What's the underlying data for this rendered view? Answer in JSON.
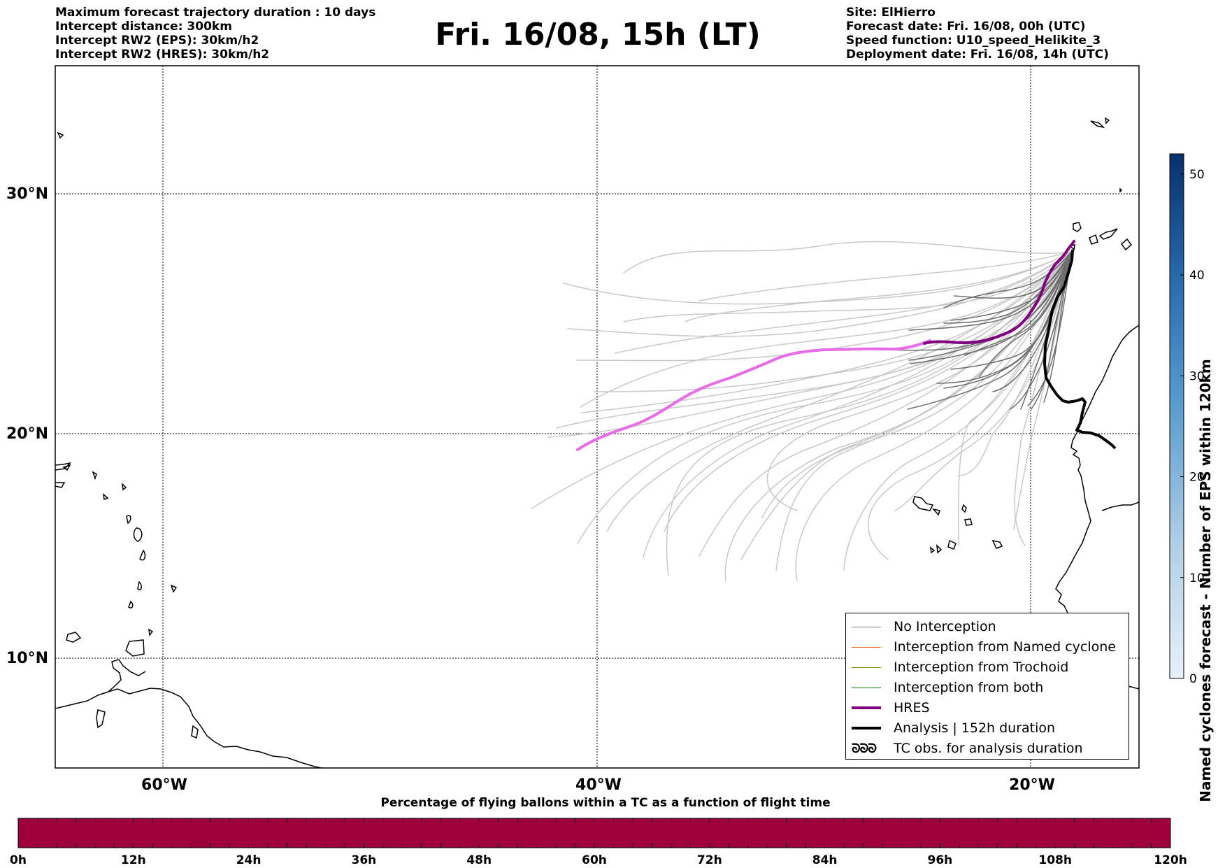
{
  "header": {
    "left": [
      "Maximum forecast trajectory duration : 10 days",
      "Intercept distance: 300km",
      "Intercept RW2 (EPS):  30km/h2",
      "Intercept RW2 (HRES): 30km/h2"
    ],
    "title": "Fri. 16/08, 15h (LT)",
    "right": [
      "Site: ElHierro",
      "Forecast date: Fri. 16/08, 00h (UTC)",
      "Speed function: U10_speed_Helikite_3",
      "Deployment date: Fri. 16/08, 14h (UTC)"
    ]
  },
  "map": {
    "lat_labels": [
      "30°N",
      "20°N",
      "10°N"
    ],
    "lon_labels": [
      "60°W",
      "40°W",
      "20°W"
    ],
    "extent": {
      "lon": [
        -65,
        -15
      ],
      "lat": [
        4.6,
        33.9
      ]
    },
    "gridlines": true,
    "colors": {
      "coast": "#000000",
      "eps_no_interception_dark": "#6e6e6e",
      "eps_no_interception_light": "#c8c8c8",
      "hres_early": "#800080",
      "hres_late": "#e86ce8",
      "analysis": "#000000"
    }
  },
  "colorbar_right": {
    "title": "Named cyclones forecast - Number of EPS within 120km",
    "ticks": [
      "50",
      "40",
      "30",
      "20",
      "10",
      "0"
    ],
    "range": [
      0,
      52
    ],
    "colors": [
      "#e4eef9",
      "#08306b"
    ]
  },
  "colorbar_bottom": {
    "title": "Percentage of flying ballons within a TC as a function of flight time",
    "ticks": [
      "0h",
      "12h",
      "24h",
      "36h",
      "48h",
      "60h",
      "72h",
      "84h",
      "96h",
      "108h",
      "120h"
    ],
    "fill_color": "#9e003a"
  },
  "legend": {
    "items": [
      {
        "label": "No Interception",
        "color": "#808080",
        "style": "thin"
      },
      {
        "label": "Interception from Named cyclone",
        "color": "#ff5a1e",
        "style": "thin"
      },
      {
        "label": "Interception from Trochoid",
        "color": "#808000",
        "style": "thin"
      },
      {
        "label": "Interception from both",
        "color": "#008000",
        "style": "thin"
      },
      {
        "label": "HRES",
        "color": "#800080",
        "style": "thick"
      },
      {
        "label": "Analysis | 152h duration",
        "color": "#000000",
        "style": "thick"
      },
      {
        "label": "TC obs. for analysis duration",
        "color": "#000000",
        "style": "symbol",
        "symbol": "ᘐᘐᘐ"
      }
    ]
  }
}
